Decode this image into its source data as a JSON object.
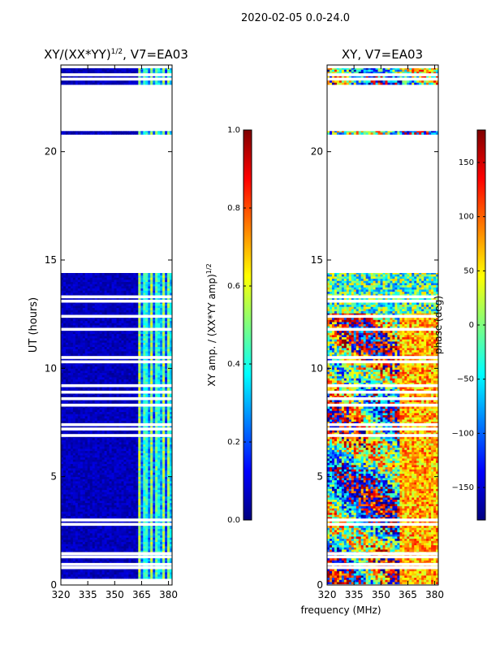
{
  "suptitle": "2020-02-05 0.0-24.0",
  "xlabel_shared": "frequency (MHz)",
  "chart_data": [
    {
      "type": "heatmap",
      "title_main": "XY/(XX*YY)",
      "title_sup": "1/2",
      "title_tail": ", V7=EA03",
      "ylabel": "UT (hours)",
      "x_range": [
        320,
        382
      ],
      "y_range": [
        0,
        24
      ],
      "x_ticks": [
        320,
        335,
        350,
        365,
        380
      ],
      "y_ticks": [
        0,
        5,
        10,
        15,
        20
      ],
      "data_rows": [
        [
          0.3,
          14.4
        ],
        [
          20.8,
          20.95
        ],
        [
          23.1,
          23.85
        ]
      ],
      "gap_rows": [
        0.8,
        0.95,
        1.3,
        1.45,
        2.8,
        3.0,
        6.9,
        7.2,
        7.4,
        8.3,
        8.6,
        8.9,
        9.2,
        10.3,
        10.5,
        11.8,
        12.4,
        13.1,
        13.3,
        23.35,
        23.55
      ],
      "bright_band_mhz": [
        363,
        382
      ],
      "colorbar": {
        "label_main": "XY amp. / (XX*YY amp)",
        "label_sup": "1/2",
        "ticks": [
          "0.0",
          "0.2",
          "0.4",
          "0.6",
          "0.8",
          "1.0"
        ],
        "range": [
          0,
          1
        ]
      }
    },
    {
      "type": "heatmap",
      "title": "XY, V7=EA03",
      "x_range": [
        320,
        382
      ],
      "y_range": [
        0,
        24
      ],
      "x_ticks": [
        320,
        335,
        350,
        365,
        380
      ],
      "y_ticks": [
        0,
        5,
        10,
        15,
        20
      ],
      "data_rows": [
        [
          0.05,
          14.4
        ],
        [
          20.8,
          20.95
        ],
        [
          23.1,
          23.85
        ]
      ],
      "gap_rows": [
        0.8,
        0.95,
        1.3,
        1.45,
        2.8,
        3.0,
        6.9,
        7.2,
        7.4,
        8.3,
        8.6,
        8.9,
        9.2,
        10.3,
        10.5,
        11.8,
        12.4,
        13.1,
        13.3,
        23.35,
        23.55
      ],
      "colorbar": {
        "label": "phase (deg)",
        "ticks": [
          "−150",
          "−100",
          "−50",
          "0",
          "50",
          "100",
          "150"
        ],
        "tick_values": [
          -150,
          -100,
          -50,
          0,
          50,
          100,
          150
        ],
        "range": [
          -180,
          180
        ]
      }
    }
  ],
  "colormap": [
    "#00007f",
    "#0000ff",
    "#007fff",
    "#00ffff",
    "#7fff7f",
    "#ffff00",
    "#ff7f00",
    "#ff0000",
    "#7f0000"
  ]
}
